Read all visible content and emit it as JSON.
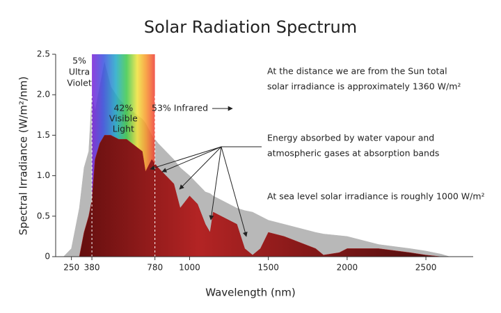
{
  "chart_data": {
    "type": "area",
    "title": "Solar Radiation Spectrum",
    "x_label": "Wavelength (nm)",
    "y_label": "Spectral Irradiance (W/m²/nm)",
    "x": [
      200,
      250,
      300,
      330,
      360,
      380,
      400,
      430,
      460,
      500,
      550,
      600,
      700,
      720,
      760,
      800,
      850,
      900,
      940,
      1000,
      1050,
      1100,
      1130,
      1150,
      1200,
      1300,
      1350,
      1400,
      1450,
      1500,
      1600,
      1800,
      1850,
      1950,
      2000,
      2200,
      2400,
      2500,
      2600,
      2650
    ],
    "series": [
      {
        "color": "#b8b8b8",
        "values": [
          0,
          0.1,
          0.6,
          1.1,
          1.3,
          2.0,
          1.8,
          2.1,
          2.4,
          2.1,
          1.95,
          1.85,
          1.7,
          1.65,
          1.5,
          1.4,
          1.3,
          1.2,
          1.1,
          1.0,
          0.9,
          0.8,
          0.78,
          0.75,
          0.7,
          0.6,
          0.57,
          0.55,
          0.5,
          0.45,
          0.4,
          0.3,
          0.28,
          0.26,
          0.25,
          0.15,
          0.1,
          0.07,
          0.03,
          0
        ]
      },
      {
        "color": "#a11d1d",
        "values": [
          0,
          0,
          0,
          0.3,
          0.5,
          0.7,
          1.2,
          1.4,
          1.5,
          1.5,
          1.45,
          1.45,
          1.3,
          1.05,
          1.2,
          1.1,
          1.0,
          0.9,
          0.6,
          0.75,
          0.65,
          0.4,
          0.3,
          0.55,
          0.5,
          0.4,
          0.1,
          0.02,
          0.1,
          0.3,
          0.25,
          0.1,
          0.02,
          0.05,
          0.1,
          0.1,
          0.05,
          0.02,
          0,
          0
        ]
      }
    ],
    "visible_band": [
      380,
      780
    ],
    "xlim": [
      150,
      2800
    ],
    "ylim": [
      0,
      2.5
    ],
    "xticks": [
      250,
      380,
      780,
      1000,
      1500,
      2000,
      2500
    ],
    "yticks": [
      0,
      0.5,
      {
        "value": 1,
        "label": "1.0"
      },
      1.5,
      {
        "value": 2,
        "label": "2.0"
      },
      2.5
    ],
    "uv_label": [
      "5%",
      "Ultra",
      "Violet"
    ],
    "visible_label": [
      "42%",
      "Visible",
      "Light"
    ],
    "infrared_label": "53% Infrared",
    "note_total": [
      "At the distance we are from the Sun total",
      "solar irradiance is approximately 1360 W/m²"
    ],
    "note_absorption": [
      "Energy absorbed by water vapour and",
      "atmospheric gases at absorption bands"
    ],
    "note_sea_level": "At sea level solar irradiance is roughly 1000 W/m²"
  }
}
